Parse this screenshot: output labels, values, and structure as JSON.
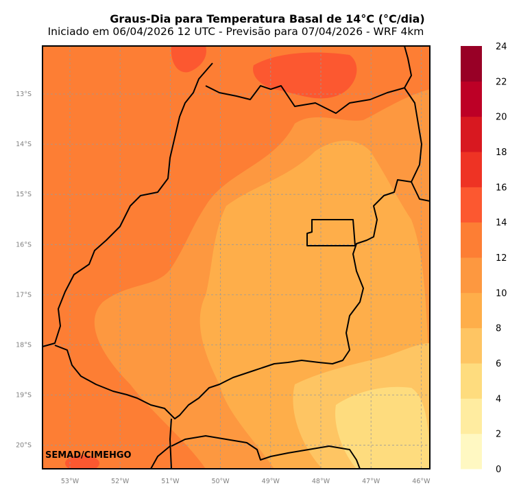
{
  "title": "Graus-Dia para Temperatura Basal de 14°C (°C/dia)",
  "subtitle": "Iniciado em 06/04/2026 12 UTC - Previsão para 07/04/2026 - WRF 4km",
  "watermark": "SEMAD/CIMEHGO",
  "map": {
    "lon_ticks": [
      "53°W",
      "52°W",
      "51°W",
      "50°W",
      "49°W",
      "48°W",
      "47°W",
      "46°W"
    ],
    "lat_ticks": [
      "13°S",
      "14°S",
      "15°S",
      "16°S",
      "17°S",
      "18°S",
      "19°S",
      "20°S"
    ],
    "grid": true
  },
  "colorbar": {
    "ticks": [
      "0",
      "2",
      "4",
      "6",
      "8",
      "10",
      "12",
      "14",
      "16",
      "18",
      "20",
      "22",
      "24"
    ],
    "colors": [
      "#fff8c2",
      "#ffeca0",
      "#fedc7e",
      "#fec563",
      "#feae4a",
      "#fd9840",
      "#fd7e34",
      "#fc5830",
      "#ee3324",
      "#d81820",
      "#bd0026",
      "#980026"
    ]
  }
}
